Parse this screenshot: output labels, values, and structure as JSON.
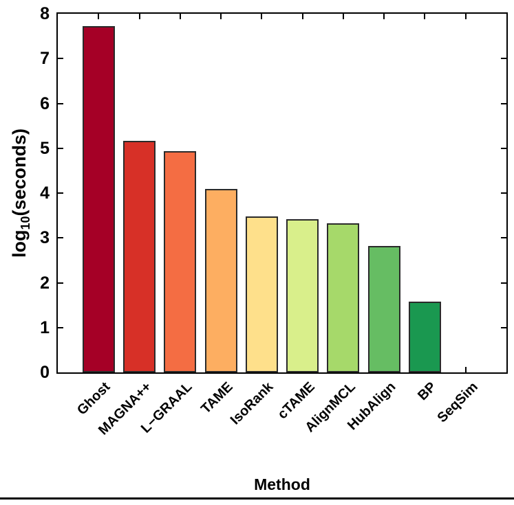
{
  "figure": {
    "xlabel": "Method",
    "ylabel_prefix": "log",
    "ylabel_sub": "10",
    "ylabel_suffix": "(seconds)"
  },
  "chart_data": {
    "type": "bar",
    "title": "",
    "xlabel": "Method",
    "ylabel": "log10(seconds)",
    "categories": [
      "Ghost",
      "MAGNA++",
      "L−GRAAL",
      "TAME",
      "IsoRank",
      "cTAME",
      "AlignMCL",
      "HubAlign",
      "BP",
      "SeqSim"
    ],
    "values": [
      7.72,
      5.16,
      4.94,
      4.09,
      3.48,
      3.42,
      3.33,
      2.82,
      1.58,
      0
    ],
    "bar_colors": [
      "#a50026",
      "#d73027",
      "#f46d43",
      "#fdae61",
      "#fee08b",
      "#d9ef8b",
      "#a6d96a",
      "#66bd63",
      "#1a9850",
      "#006837"
    ],
    "bar_edge_color": "#2a2a2a",
    "axis_color": "#000000",
    "ylim": [
      0,
      8
    ],
    "yticks": [
      0,
      1,
      2,
      3,
      4,
      5,
      6,
      7,
      8
    ],
    "xlim": [
      0,
      11
    ],
    "bar_width_units": 0.8,
    "grid": false,
    "legend": null,
    "box": true,
    "tick_direction": "in",
    "x_tick_label_rotation_deg": 45
  }
}
